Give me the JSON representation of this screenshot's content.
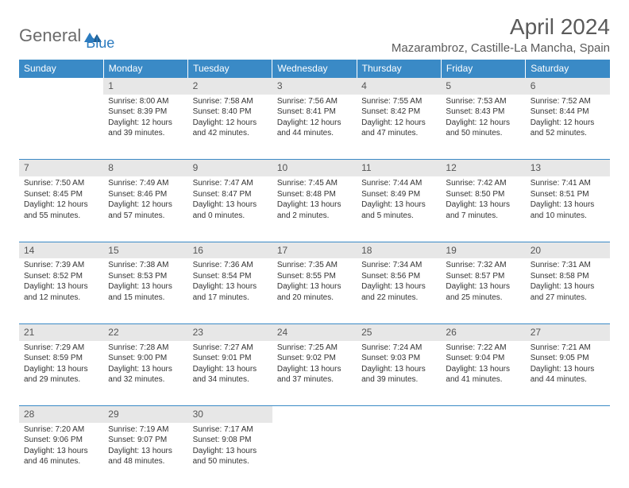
{
  "logo": {
    "text1": "General",
    "text2": "Blue"
  },
  "title": "April 2024",
  "location": "Mazarambroz, Castille-La Mancha, Spain",
  "colors": {
    "header_bg": "#3a8ac6",
    "header_text": "#ffffff",
    "daynum_bg": "#e7e7e7",
    "border": "#3a8ac6",
    "logo_gray": "#6b6b6b",
    "logo_blue": "#2b7bbf",
    "text": "#333333"
  },
  "weekdays": [
    "Sunday",
    "Monday",
    "Tuesday",
    "Wednesday",
    "Thursday",
    "Friday",
    "Saturday"
  ],
  "weeks": [
    {
      "nums": [
        "",
        "1",
        "2",
        "3",
        "4",
        "5",
        "6"
      ],
      "cells": [
        null,
        {
          "sunrise": "Sunrise: 8:00 AM",
          "sunset": "Sunset: 8:39 PM",
          "d1": "Daylight: 12 hours",
          "d2": "and 39 minutes."
        },
        {
          "sunrise": "Sunrise: 7:58 AM",
          "sunset": "Sunset: 8:40 PM",
          "d1": "Daylight: 12 hours",
          "d2": "and 42 minutes."
        },
        {
          "sunrise": "Sunrise: 7:56 AM",
          "sunset": "Sunset: 8:41 PM",
          "d1": "Daylight: 12 hours",
          "d2": "and 44 minutes."
        },
        {
          "sunrise": "Sunrise: 7:55 AM",
          "sunset": "Sunset: 8:42 PM",
          "d1": "Daylight: 12 hours",
          "d2": "and 47 minutes."
        },
        {
          "sunrise": "Sunrise: 7:53 AM",
          "sunset": "Sunset: 8:43 PM",
          "d1": "Daylight: 12 hours",
          "d2": "and 50 minutes."
        },
        {
          "sunrise": "Sunrise: 7:52 AM",
          "sunset": "Sunset: 8:44 PM",
          "d1": "Daylight: 12 hours",
          "d2": "and 52 minutes."
        }
      ]
    },
    {
      "nums": [
        "7",
        "8",
        "9",
        "10",
        "11",
        "12",
        "13"
      ],
      "cells": [
        {
          "sunrise": "Sunrise: 7:50 AM",
          "sunset": "Sunset: 8:45 PM",
          "d1": "Daylight: 12 hours",
          "d2": "and 55 minutes."
        },
        {
          "sunrise": "Sunrise: 7:49 AM",
          "sunset": "Sunset: 8:46 PM",
          "d1": "Daylight: 12 hours",
          "d2": "and 57 minutes."
        },
        {
          "sunrise": "Sunrise: 7:47 AM",
          "sunset": "Sunset: 8:47 PM",
          "d1": "Daylight: 13 hours",
          "d2": "and 0 minutes."
        },
        {
          "sunrise": "Sunrise: 7:45 AM",
          "sunset": "Sunset: 8:48 PM",
          "d1": "Daylight: 13 hours",
          "d2": "and 2 minutes."
        },
        {
          "sunrise": "Sunrise: 7:44 AM",
          "sunset": "Sunset: 8:49 PM",
          "d1": "Daylight: 13 hours",
          "d2": "and 5 minutes."
        },
        {
          "sunrise": "Sunrise: 7:42 AM",
          "sunset": "Sunset: 8:50 PM",
          "d1": "Daylight: 13 hours",
          "d2": "and 7 minutes."
        },
        {
          "sunrise": "Sunrise: 7:41 AM",
          "sunset": "Sunset: 8:51 PM",
          "d1": "Daylight: 13 hours",
          "d2": "and 10 minutes."
        }
      ]
    },
    {
      "nums": [
        "14",
        "15",
        "16",
        "17",
        "18",
        "19",
        "20"
      ],
      "cells": [
        {
          "sunrise": "Sunrise: 7:39 AM",
          "sunset": "Sunset: 8:52 PM",
          "d1": "Daylight: 13 hours",
          "d2": "and 12 minutes."
        },
        {
          "sunrise": "Sunrise: 7:38 AM",
          "sunset": "Sunset: 8:53 PM",
          "d1": "Daylight: 13 hours",
          "d2": "and 15 minutes."
        },
        {
          "sunrise": "Sunrise: 7:36 AM",
          "sunset": "Sunset: 8:54 PM",
          "d1": "Daylight: 13 hours",
          "d2": "and 17 minutes."
        },
        {
          "sunrise": "Sunrise: 7:35 AM",
          "sunset": "Sunset: 8:55 PM",
          "d1": "Daylight: 13 hours",
          "d2": "and 20 minutes."
        },
        {
          "sunrise": "Sunrise: 7:34 AM",
          "sunset": "Sunset: 8:56 PM",
          "d1": "Daylight: 13 hours",
          "d2": "and 22 minutes."
        },
        {
          "sunrise": "Sunrise: 7:32 AM",
          "sunset": "Sunset: 8:57 PM",
          "d1": "Daylight: 13 hours",
          "d2": "and 25 minutes."
        },
        {
          "sunrise": "Sunrise: 7:31 AM",
          "sunset": "Sunset: 8:58 PM",
          "d1": "Daylight: 13 hours",
          "d2": "and 27 minutes."
        }
      ]
    },
    {
      "nums": [
        "21",
        "22",
        "23",
        "24",
        "25",
        "26",
        "27"
      ],
      "cells": [
        {
          "sunrise": "Sunrise: 7:29 AM",
          "sunset": "Sunset: 8:59 PM",
          "d1": "Daylight: 13 hours",
          "d2": "and 29 minutes."
        },
        {
          "sunrise": "Sunrise: 7:28 AM",
          "sunset": "Sunset: 9:00 PM",
          "d1": "Daylight: 13 hours",
          "d2": "and 32 minutes."
        },
        {
          "sunrise": "Sunrise: 7:27 AM",
          "sunset": "Sunset: 9:01 PM",
          "d1": "Daylight: 13 hours",
          "d2": "and 34 minutes."
        },
        {
          "sunrise": "Sunrise: 7:25 AM",
          "sunset": "Sunset: 9:02 PM",
          "d1": "Daylight: 13 hours",
          "d2": "and 37 minutes."
        },
        {
          "sunrise": "Sunrise: 7:24 AM",
          "sunset": "Sunset: 9:03 PM",
          "d1": "Daylight: 13 hours",
          "d2": "and 39 minutes."
        },
        {
          "sunrise": "Sunrise: 7:22 AM",
          "sunset": "Sunset: 9:04 PM",
          "d1": "Daylight: 13 hours",
          "d2": "and 41 minutes."
        },
        {
          "sunrise": "Sunrise: 7:21 AM",
          "sunset": "Sunset: 9:05 PM",
          "d1": "Daylight: 13 hours",
          "d2": "and 44 minutes."
        }
      ]
    },
    {
      "nums": [
        "28",
        "29",
        "30",
        "",
        "",
        "",
        ""
      ],
      "cells": [
        {
          "sunrise": "Sunrise: 7:20 AM",
          "sunset": "Sunset: 9:06 PM",
          "d1": "Daylight: 13 hours",
          "d2": "and 46 minutes."
        },
        {
          "sunrise": "Sunrise: 7:19 AM",
          "sunset": "Sunset: 9:07 PM",
          "d1": "Daylight: 13 hours",
          "d2": "and 48 minutes."
        },
        {
          "sunrise": "Sunrise: 7:17 AM",
          "sunset": "Sunset: 9:08 PM",
          "d1": "Daylight: 13 hours",
          "d2": "and 50 minutes."
        },
        null,
        null,
        null,
        null
      ]
    }
  ]
}
